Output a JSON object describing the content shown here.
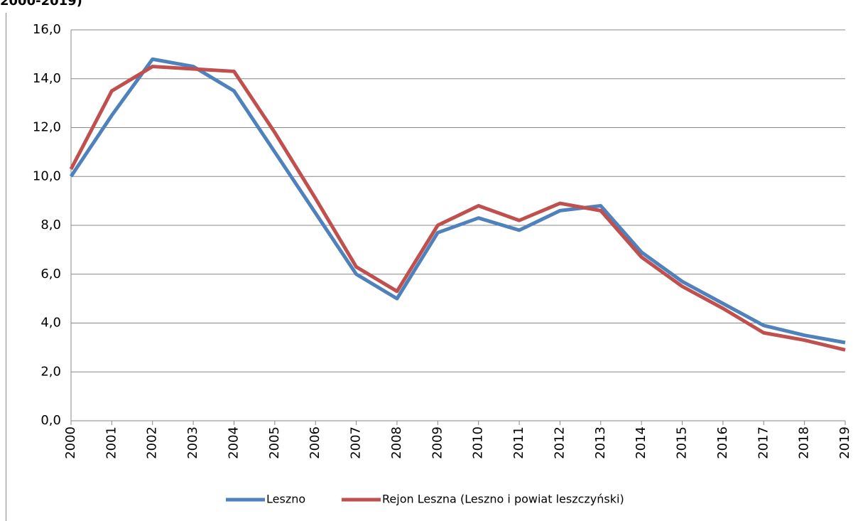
{
  "chart_data": {
    "type": "line",
    "title": "2000-2019)",
    "categories": [
      "2000",
      "2001",
      "2002",
      "2003",
      "2004",
      "2005",
      "2006",
      "2007",
      "2008",
      "2009",
      "2010",
      "2011",
      "2012",
      "2013",
      "2014",
      "2015",
      "2016",
      "2017",
      "2018",
      "2019"
    ],
    "series": [
      {
        "name": "Leszno",
        "color": "#4f81bd",
        "values": [
          10.0,
          12.5,
          14.8,
          14.5,
          13.5,
          11.0,
          8.5,
          6.0,
          5.0,
          7.7,
          8.3,
          7.8,
          8.6,
          8.8,
          6.9,
          5.7,
          4.8,
          3.9,
          3.5,
          3.2
        ]
      },
      {
        "name": "Rejon Leszna (Leszno i powiat leszczyński)",
        "color": "#c0504d",
        "values": [
          10.3,
          13.5,
          14.5,
          14.4,
          14.3,
          11.8,
          9.1,
          6.3,
          5.3,
          8.0,
          8.8,
          8.2,
          8.9,
          8.6,
          6.7,
          5.5,
          4.6,
          3.6,
          3.3,
          2.9
        ]
      }
    ],
    "ylim": [
      0,
      16
    ],
    "yticks": [
      {
        "value": 0,
        "label": "0,0"
      },
      {
        "value": 2,
        "label": "2,0"
      },
      {
        "value": 4,
        "label": "4,0"
      },
      {
        "value": 6,
        "label": "6,0"
      },
      {
        "value": 8,
        "label": "8,0"
      },
      {
        "value": 10,
        "label": "10,0"
      },
      {
        "value": 12,
        "label": "12,0"
      },
      {
        "value": 14,
        "label": "14,0"
      },
      {
        "value": 16,
        "label": "16,0"
      }
    ],
    "grid": true,
    "legend": "bottom"
  }
}
